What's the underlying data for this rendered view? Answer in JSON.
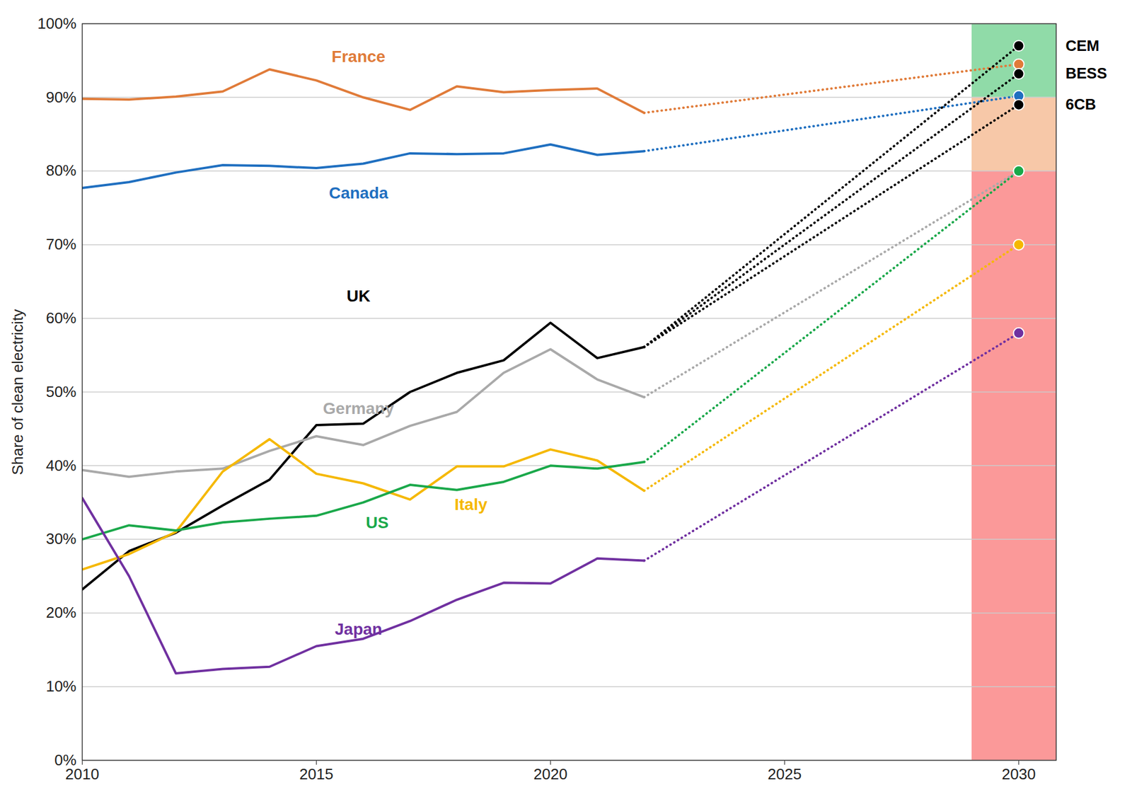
{
  "chart_data": {
    "type": "line",
    "x": [
      2010,
      2011,
      2012,
      2013,
      2014,
      2015,
      2016,
      2017,
      2018,
      2019,
      2020,
      2021,
      2022
    ],
    "xlim": [
      2010,
      2030.8
    ],
    "xticks": [
      2010,
      2015,
      2020,
      2025,
      2030
    ],
    "ylim": [
      0,
      100
    ],
    "yticks": [
      {
        "value": 0,
        "label": "0%"
      },
      {
        "value": 10,
        "label": "10%"
      },
      {
        "value": 20,
        "label": "20%"
      },
      {
        "value": 30,
        "label": "30%"
      },
      {
        "value": 40,
        "label": "40%"
      },
      {
        "value": 50,
        "label": "50%"
      },
      {
        "value": 60,
        "label": "60%"
      },
      {
        "value": 70,
        "label": "70%"
      },
      {
        "value": 80,
        "label": "80%"
      },
      {
        "value": 90,
        "label": "90%"
      },
      {
        "value": 100,
        "label": "100%"
      }
    ],
    "y_label": "Share of clean electricity",
    "grid": true,
    "target_year": 2030,
    "band_x": [
      2029,
      2030.8
    ],
    "bands": [
      {
        "from": 90,
        "to": 100,
        "color": "#90dba8"
      },
      {
        "from": 80,
        "to": 90,
        "color": "#f7c8a8"
      },
      {
        "from": 0,
        "to": 80,
        "color": "#fb9999"
      }
    ],
    "series": [
      {
        "name": "France",
        "color": "#e07b39",
        "values": [
          89.8,
          89.7,
          90.1,
          90.8,
          93.8,
          92.3,
          90.0,
          88.3,
          91.5,
          90.7,
          91.0,
          91.2,
          87.9
        ],
        "targets": [
          {
            "value": 94.5
          }
        ]
      },
      {
        "name": "Canada",
        "color": "#1f6fc0",
        "values": [
          77.7,
          78.5,
          79.8,
          80.8,
          80.7,
          80.4,
          81.0,
          82.4,
          82.3,
          82.4,
          83.6,
          82.2,
          82.7
        ],
        "targets": [
          {
            "value": 90.2
          }
        ]
      },
      {
        "name": "UK",
        "color": "#000000",
        "values": [
          23.2,
          28.4,
          30.9,
          34.6,
          38.1,
          45.5,
          45.7,
          50.0,
          52.6,
          54.3,
          59.4,
          54.6,
          56.1
        ],
        "targets": [
          {
            "label": "CEM",
            "value": 97
          },
          {
            "label": "BESS",
            "value": 93.2
          },
          {
            "label": "6CB",
            "value": 89
          }
        ]
      },
      {
        "name": "Germany",
        "color": "#a9a9a9",
        "values": [
          39.4,
          38.5,
          39.2,
          39.6,
          42.0,
          44.0,
          42.8,
          45.4,
          47.3,
          52.6,
          55.8,
          51.7,
          49.3
        ],
        "targets": [
          {
            "value": 80
          }
        ]
      },
      {
        "name": "Italy",
        "color": "#f5b800",
        "values": [
          25.9,
          28.0,
          31.0,
          39.2,
          43.6,
          38.9,
          37.6,
          35.4,
          39.9,
          39.9,
          42.2,
          40.7,
          36.6
        ],
        "targets": [
          {
            "value": 70
          }
        ]
      },
      {
        "name": "US",
        "color": "#1aa84a",
        "values": [
          30.0,
          31.9,
          31.2,
          32.3,
          32.8,
          33.2,
          35.0,
          37.4,
          36.7,
          37.8,
          40.0,
          39.6,
          40.5
        ],
        "targets": [
          {
            "value": 80
          }
        ]
      },
      {
        "name": "Japan",
        "color": "#7030a0",
        "values": [
          35.6,
          25.0,
          11.8,
          12.4,
          12.7,
          15.5,
          16.5,
          18.9,
          21.8,
          24.1,
          24.0,
          27.4,
          27.1
        ],
        "targets": [
          {
            "value": 58
          }
        ]
      }
    ]
  }
}
